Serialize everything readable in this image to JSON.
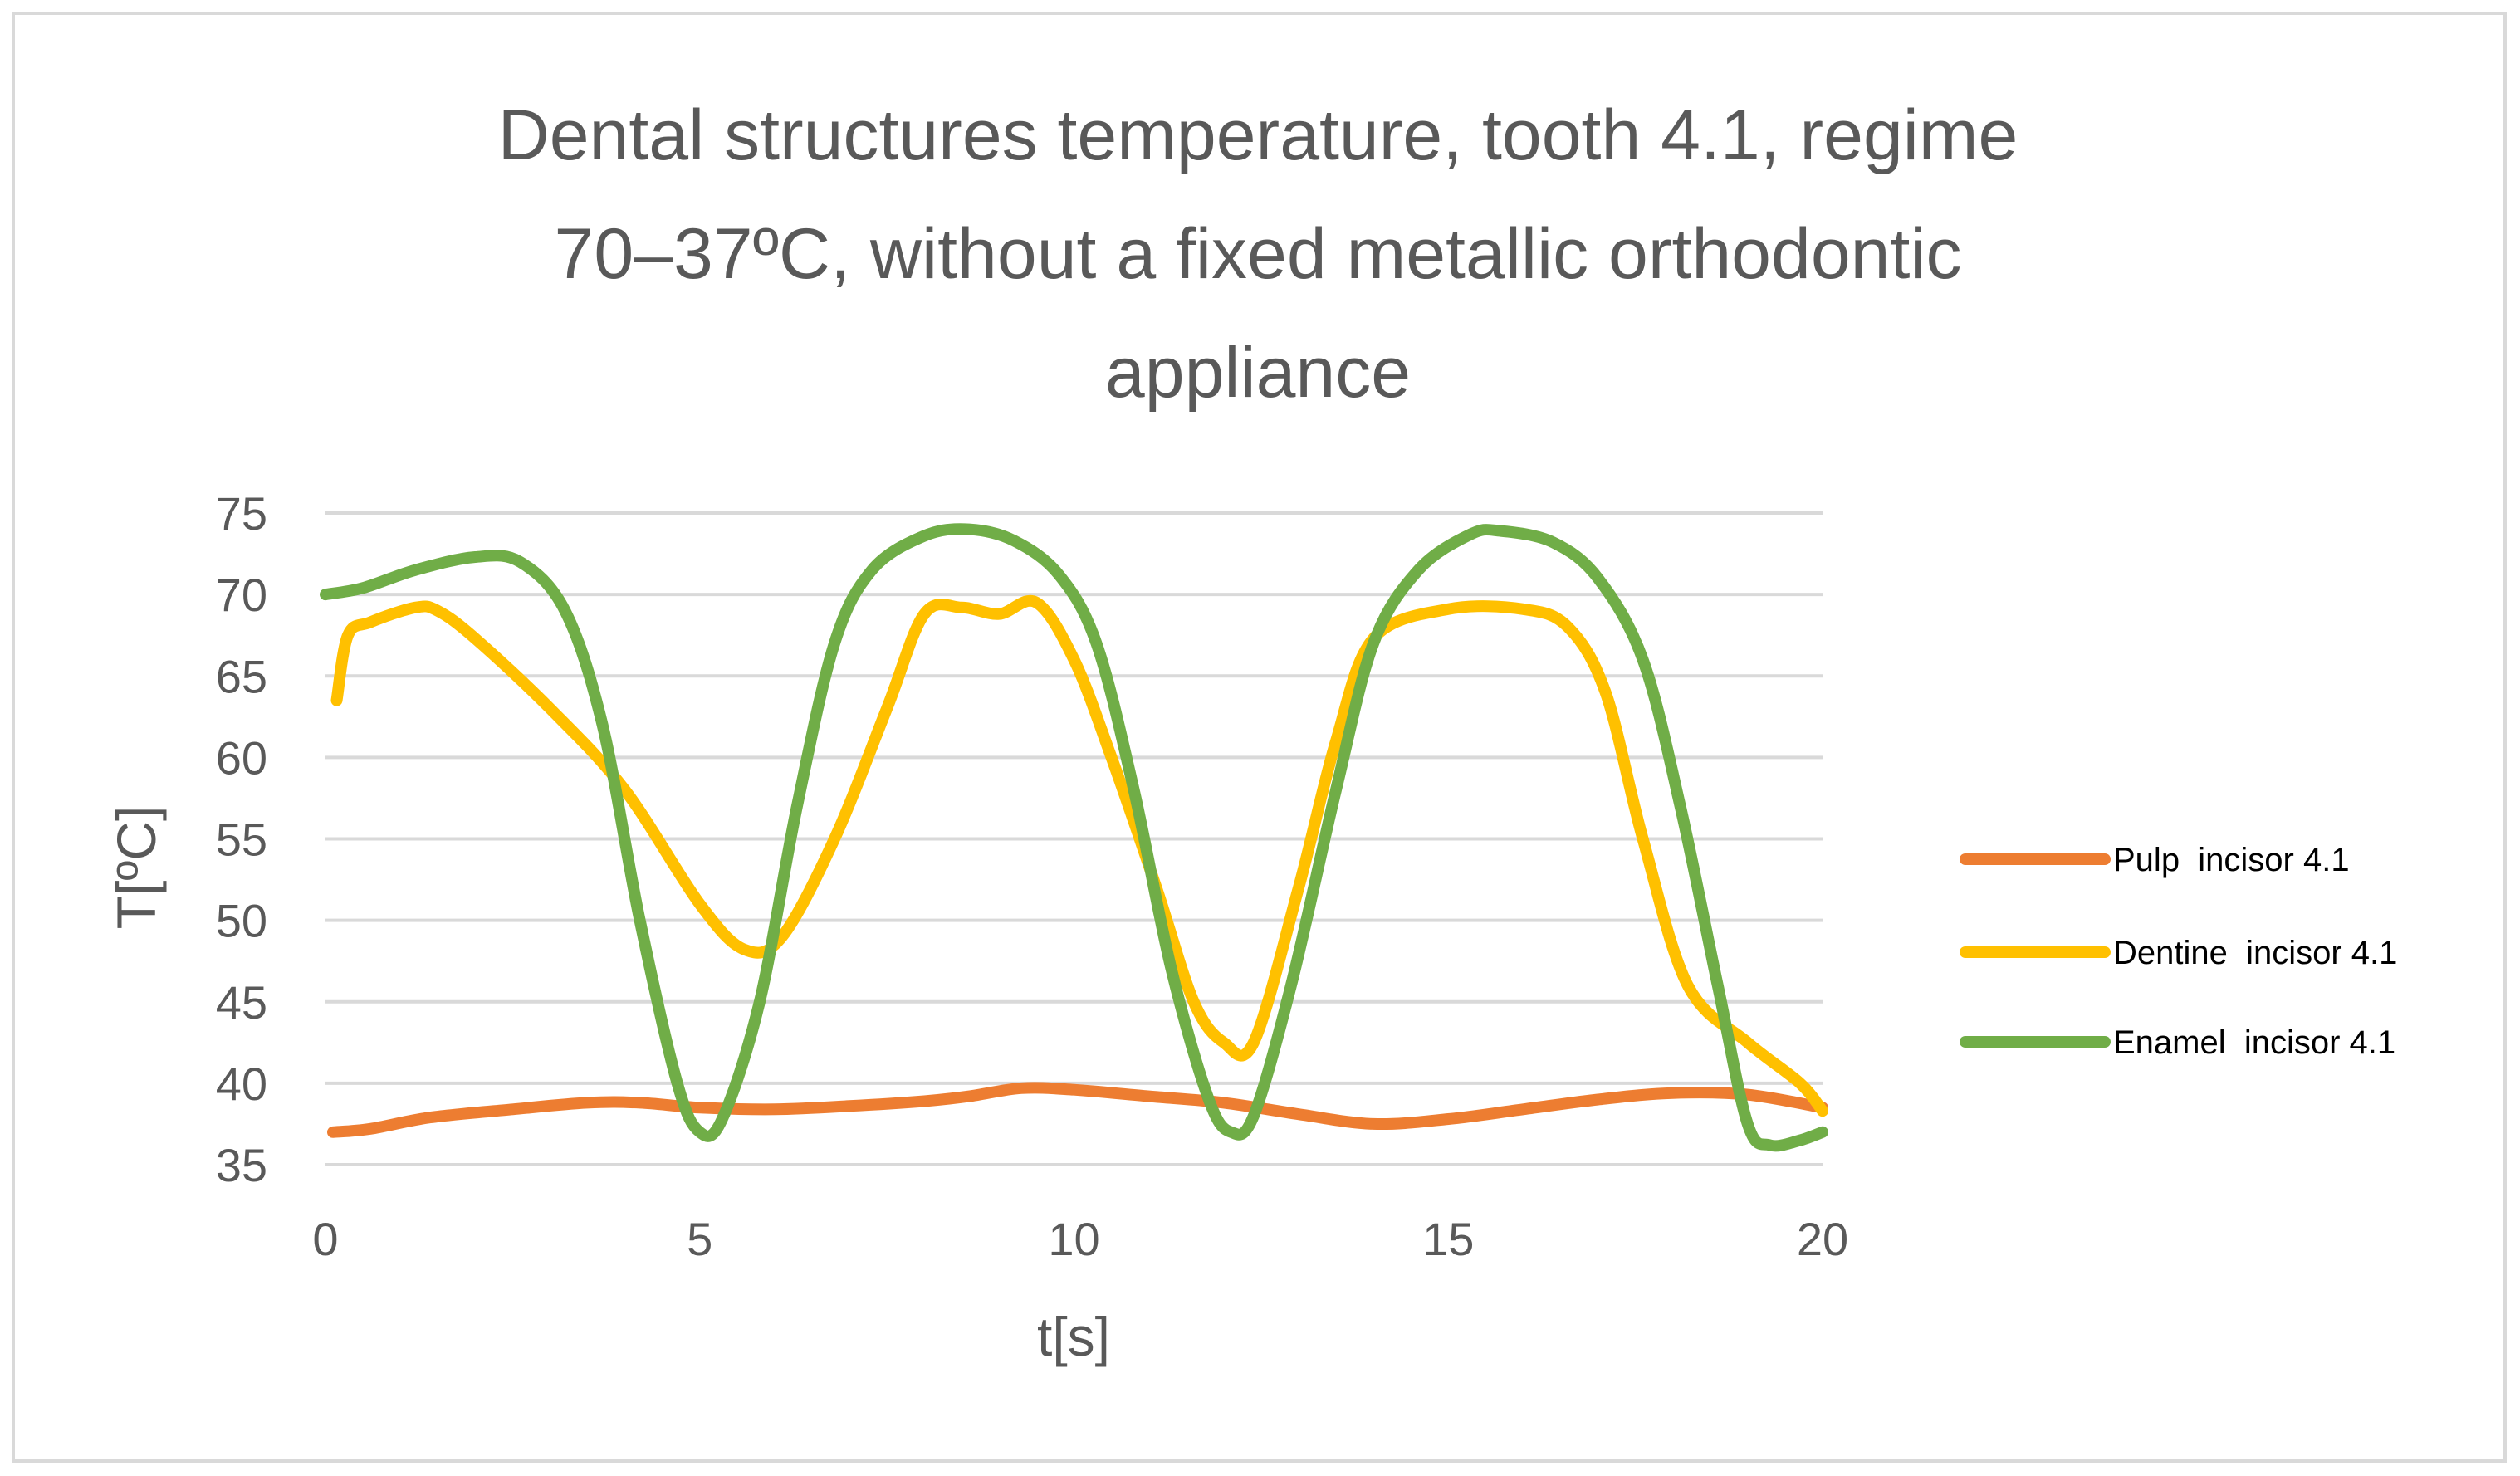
{
  "chart_data": {
    "type": "line",
    "title": "Dental structures temperature, tooth 4.1, regime 70–37ºC, without a fixed metallic orthodontic appliance",
    "title_lines": [
      "Dental structures temperature, tooth 4.1, regime",
      "70–37ºC, without a fixed metallic orthodontic",
      "appliance"
    ],
    "xlabel": "t[s]",
    "ylabel": "T[ºC]",
    "xlim": [
      0,
      20
    ],
    "ylim": [
      35,
      75
    ],
    "xticks": [
      "0",
      "5",
      "10",
      "15",
      "20"
    ],
    "yticks": [
      "35",
      "40",
      "45",
      "50",
      "55",
      "60",
      "65",
      "70",
      "75"
    ],
    "grid": true,
    "legend_position": "right",
    "series": [
      {
        "name": "Pulp  incisor 4.1",
        "color": "#ED7D31",
        "points": [
          [
            0.1,
            37
          ],
          [
            0.6,
            37.2
          ],
          [
            1.4,
            37.9
          ],
          [
            2.5,
            38.4
          ],
          [
            3.5,
            38.8
          ],
          [
            4.2,
            38.8
          ],
          [
            5,
            38.5
          ],
          [
            6,
            38.4
          ],
          [
            7,
            38.6
          ],
          [
            8,
            38.9
          ],
          [
            8.6,
            39.2
          ],
          [
            9.3,
            39.7
          ],
          [
            10,
            39.6
          ],
          [
            11,
            39.2
          ],
          [
            12,
            38.8
          ],
          [
            13,
            38.1
          ],
          [
            14,
            37.5
          ],
          [
            15,
            37.8
          ],
          [
            16,
            38.4
          ],
          [
            17,
            39
          ],
          [
            18,
            39.4
          ],
          [
            19,
            39.3
          ],
          [
            20,
            38.5
          ]
        ]
      },
      {
        "name": "Dentine  incisor 4.1",
        "color": "#FFC000",
        "points": [
          [
            0.15,
            63.5
          ],
          [
            0.3,
            67.5
          ],
          [
            0.6,
            68.3
          ],
          [
            1.2,
            69.2
          ],
          [
            1.5,
            69
          ],
          [
            2,
            67.3
          ],
          [
            3,
            63
          ],
          [
            4,
            58
          ],
          [
            5,
            51
          ],
          [
            5.6,
            48.2
          ],
          [
            6.1,
            49
          ],
          [
            6.8,
            55
          ],
          [
            7.5,
            63
          ],
          [
            8,
            68.8
          ],
          [
            8.5,
            69.2
          ],
          [
            9,
            68.8
          ],
          [
            9.5,
            69.5
          ],
          [
            10,
            66
          ],
          [
            10.5,
            60
          ],
          [
            11.1,
            52
          ],
          [
            11.6,
            45
          ],
          [
            12,
            42.5
          ],
          [
            12.4,
            42.5
          ],
          [
            13,
            52
          ],
          [
            13.5,
            61
          ],
          [
            14,
            67.3
          ],
          [
            15,
            69.1
          ],
          [
            16,
            69.1
          ],
          [
            16.6,
            68
          ],
          [
            17.1,
            64
          ],
          [
            17.6,
            55
          ],
          [
            18.2,
            46
          ],
          [
            19,
            42.5
          ],
          [
            19.7,
            40
          ],
          [
            20,
            38.3
          ]
        ]
      },
      {
        "name": "Enamel  incisor 4.1",
        "color": "#70AD47",
        "points": [
          [
            0,
            70
          ],
          [
            0.5,
            70.4
          ],
          [
            1.2,
            71.5
          ],
          [
            2,
            72.3
          ],
          [
            2.6,
            72
          ],
          [
            3.2,
            69
          ],
          [
            3.7,
            62
          ],
          [
            4.2,
            50
          ],
          [
            4.7,
            40
          ],
          [
            5,
            37
          ],
          [
            5.3,
            37.8
          ],
          [
            5.8,
            45
          ],
          [
            6.3,
            57
          ],
          [
            6.8,
            67
          ],
          [
            7.3,
            71.5
          ],
          [
            8,
            73.6
          ],
          [
            8.6,
            74
          ],
          [
            9.2,
            73.3
          ],
          [
            9.8,
            71.2
          ],
          [
            10.3,
            67
          ],
          [
            10.8,
            58
          ],
          [
            11.3,
            47
          ],
          [
            11.8,
            39
          ],
          [
            12.1,
            37
          ],
          [
            12.4,
            38
          ],
          [
            12.9,
            46
          ],
          [
            13.5,
            58
          ],
          [
            14,
            67
          ],
          [
            14.6,
            71.5
          ],
          [
            15.3,
            73.7
          ],
          [
            15.7,
            73.9
          ],
          [
            16.4,
            73.2
          ],
          [
            17,
            71
          ],
          [
            17.6,
            66
          ],
          [
            18.1,
            57
          ],
          [
            18.6,
            46
          ],
          [
            19,
            37.5
          ],
          [
            19.3,
            36.2
          ],
          [
            19.7,
            36.5
          ],
          [
            20,
            37
          ]
        ]
      }
    ]
  }
}
